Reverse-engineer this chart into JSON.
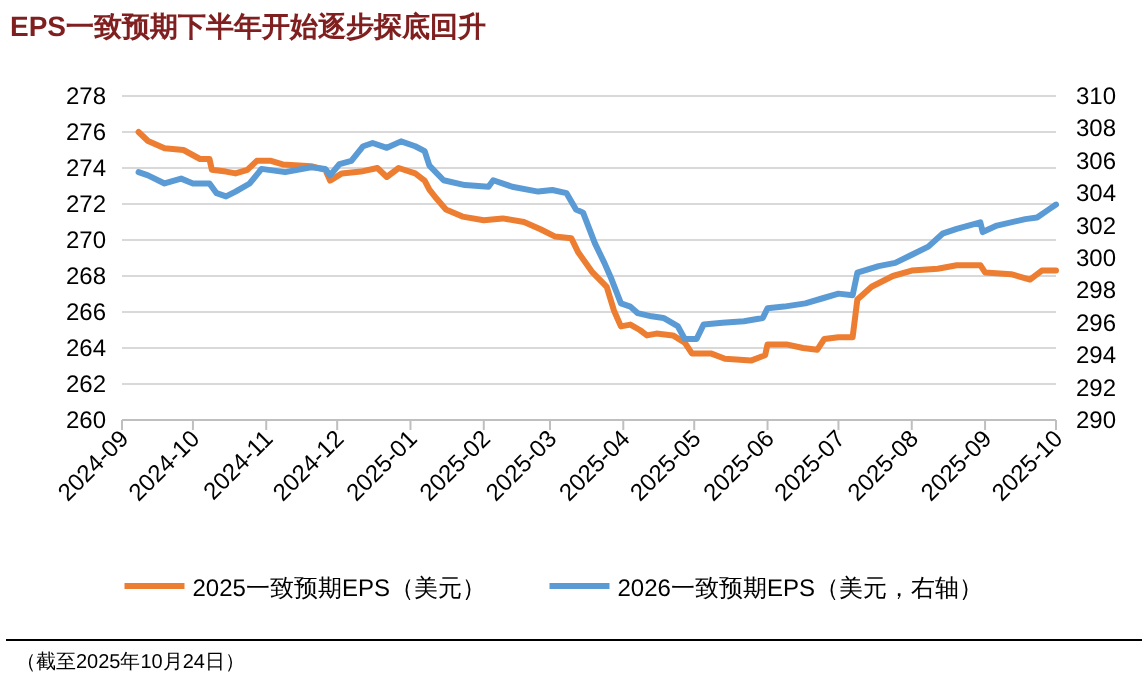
{
  "chart_data": {
    "type": "line",
    "title": "EPS一致预期下半年开始逐步探底回升",
    "annotations": [
      "（截至2025年10月24日）"
    ],
    "xlim": [
      "2024-09-01",
      "2025-10-01"
    ],
    "xticks": [
      {
        "value": "2024-09-01",
        "label": "2024-09"
      },
      {
        "value": "2024-10-01",
        "label": "2024-10"
      },
      {
        "value": "2024-11-01",
        "label": "2024-11"
      },
      {
        "value": "2024-12-01",
        "label": "2024-12"
      },
      {
        "value": "2025-01-01",
        "label": "2025-01"
      },
      {
        "value": "2025-02-01",
        "label": "2025-02"
      },
      {
        "value": "2025-03-01",
        "label": "2025-03"
      },
      {
        "value": "2025-04-01",
        "label": "2025-04"
      },
      {
        "value": "2025-05-01",
        "label": "2025-05"
      },
      {
        "value": "2025-06-01",
        "label": "2025-06"
      },
      {
        "value": "2025-07-01",
        "label": "2025-07"
      },
      {
        "value": "2025-08-01",
        "label": "2025-08"
      },
      {
        "value": "2025-09-01",
        "label": "2025-09"
      },
      {
        "value": "2025-10-01",
        "label": "2025-10"
      }
    ],
    "ylim": [
      260,
      278
    ],
    "yticks": [
      260,
      262,
      264,
      266,
      268,
      270,
      272,
      274,
      276,
      278
    ],
    "y2lim": [
      290,
      310
    ],
    "y2ticks": [
      290,
      292,
      294,
      296,
      298,
      300,
      302,
      304,
      306,
      308,
      310
    ],
    "grid": "y",
    "legend": "bottom",
    "line_style": "solid",
    "marker": "none",
    "series": [
      {
        "name": "2025一致预期EPS（美元）",
        "color": "#ed7d31",
        "x": [
          "2024-09-08",
          "2024-09-12",
          "2024-09-19",
          "2024-09-27",
          "2024-10-04",
          "2024-10-08",
          "2024-10-09",
          "2024-10-15",
          "2024-10-19",
          "2024-10-24",
          "2024-10-28",
          "2024-11-03",
          "2024-11-08",
          "2024-11-20",
          "2024-11-26",
          "2024-11-28",
          "2024-12-03",
          "2024-12-11",
          "2024-12-18",
          "2024-12-22",
          "2024-12-27",
          "2025-01-03",
          "2025-01-07",
          "2025-01-09",
          "2025-01-12",
          "2025-01-16",
          "2025-01-23",
          "2025-02-01",
          "2025-02-09",
          "2025-02-18",
          "2025-02-25",
          "2025-03-03",
          "2025-03-10",
          "2025-03-13",
          "2025-03-19",
          "2025-03-25",
          "2025-03-28",
          "2025-03-31",
          "2025-04-04",
          "2025-04-08",
          "2025-04-11",
          "2025-04-15",
          "2025-04-22",
          "2025-04-27",
          "2025-04-30",
          "2025-05-08",
          "2025-05-14",
          "2025-05-25",
          "2025-05-31",
          "2025-06-01",
          "2025-06-09",
          "2025-06-16",
          "2025-06-22",
          "2025-06-25",
          "2025-07-01",
          "2025-07-07",
          "2025-07-09",
          "2025-07-15",
          "2025-07-24",
          "2025-08-01",
          "2025-08-12",
          "2025-08-20",
          "2025-08-30",
          "2025-09-01",
          "2025-09-12",
          "2025-09-20",
          "2025-09-25",
          "2025-10-01"
        ],
        "values": [
          276.0,
          275.5,
          275.1,
          275.0,
          274.5,
          274.5,
          273.9,
          273.8,
          273.7,
          273.9,
          274.4,
          274.4,
          274.2,
          274.1,
          273.9,
          273.3,
          273.7,
          273.8,
          274.0,
          273.5,
          274.0,
          273.7,
          273.3,
          272.8,
          272.3,
          271.7,
          271.3,
          271.1,
          271.2,
          271.0,
          270.6,
          270.2,
          270.1,
          269.3,
          268.2,
          267.4,
          266.1,
          265.2,
          265.3,
          265.0,
          264.7,
          264.8,
          264.7,
          264.3,
          263.7,
          263.7,
          263.4,
          263.3,
          263.6,
          264.2,
          264.2,
          264.0,
          263.9,
          264.5,
          264.6,
          264.6,
          266.7,
          267.4,
          268.0,
          268.3,
          268.4,
          268.6,
          268.6,
          268.2,
          268.1,
          267.8,
          268.3,
          268.3
        ]
      },
      {
        "name": "2026一致预期EPS（美元，右轴）",
        "color": "#5b9bd5",
        "axis": "y2",
        "x": [
          "2024-09-08",
          "2024-09-12",
          "2024-09-19",
          "2024-09-26",
          "2024-10-01",
          "2024-10-08",
          "2024-10-11",
          "2024-10-15",
          "2024-10-19",
          "2024-10-25",
          "2024-10-30",
          "2024-11-09",
          "2024-11-20",
          "2024-11-26",
          "2024-11-28",
          "2024-12-02",
          "2024-12-07",
          "2024-12-12",
          "2024-12-16",
          "2024-12-22",
          "2024-12-28",
          "2025-01-03",
          "2025-01-07",
          "2025-01-09",
          "2025-01-15",
          "2025-01-24",
          "2025-02-03",
          "2025-02-05",
          "2025-02-13",
          "2025-02-24",
          "2025-03-02",
          "2025-03-08",
          "2025-03-12",
          "2025-03-15",
          "2025-03-20",
          "2025-03-24",
          "2025-03-27",
          "2025-03-31",
          "2025-04-04",
          "2025-04-07",
          "2025-04-13",
          "2025-04-18",
          "2025-04-24",
          "2025-04-27",
          "2025-05-02",
          "2025-05-05",
          "2025-05-13",
          "2025-05-22",
          "2025-05-30",
          "2025-06-01",
          "2025-06-08",
          "2025-06-17",
          "2025-06-24",
          "2025-07-01",
          "2025-07-07",
          "2025-07-09",
          "2025-07-18",
          "2025-07-25",
          "2025-08-01",
          "2025-08-08",
          "2025-08-14",
          "2025-08-20",
          "2025-08-30",
          "2025-08-31",
          "2025-09-06",
          "2025-09-18",
          "2025-09-23",
          "2025-09-28",
          "2025-10-01"
        ],
        "values": [
          305.3,
          305.1,
          304.6,
          304.9,
          304.6,
          304.6,
          304.0,
          303.8,
          304.1,
          304.6,
          305.5,
          305.3,
          305.6,
          305.5,
          305.1,
          305.8,
          306.0,
          306.9,
          307.1,
          306.8,
          307.2,
          306.9,
          306.6,
          305.7,
          304.8,
          304.5,
          304.4,
          304.8,
          304.4,
          304.1,
          304.2,
          304.0,
          303.0,
          302.8,
          300.9,
          299.7,
          298.7,
          297.2,
          297.0,
          296.6,
          296.4,
          296.3,
          295.8,
          295.0,
          295.0,
          295.9,
          296.0,
          296.1,
          296.3,
          296.9,
          297.0,
          297.2,
          297.5,
          297.8,
          297.7,
          299.1,
          299.5,
          299.7,
          300.2,
          300.7,
          301.5,
          301.8,
          302.2,
          301.6,
          302.0,
          302.4,
          302.5,
          303.0,
          303.3
        ]
      }
    ]
  }
}
